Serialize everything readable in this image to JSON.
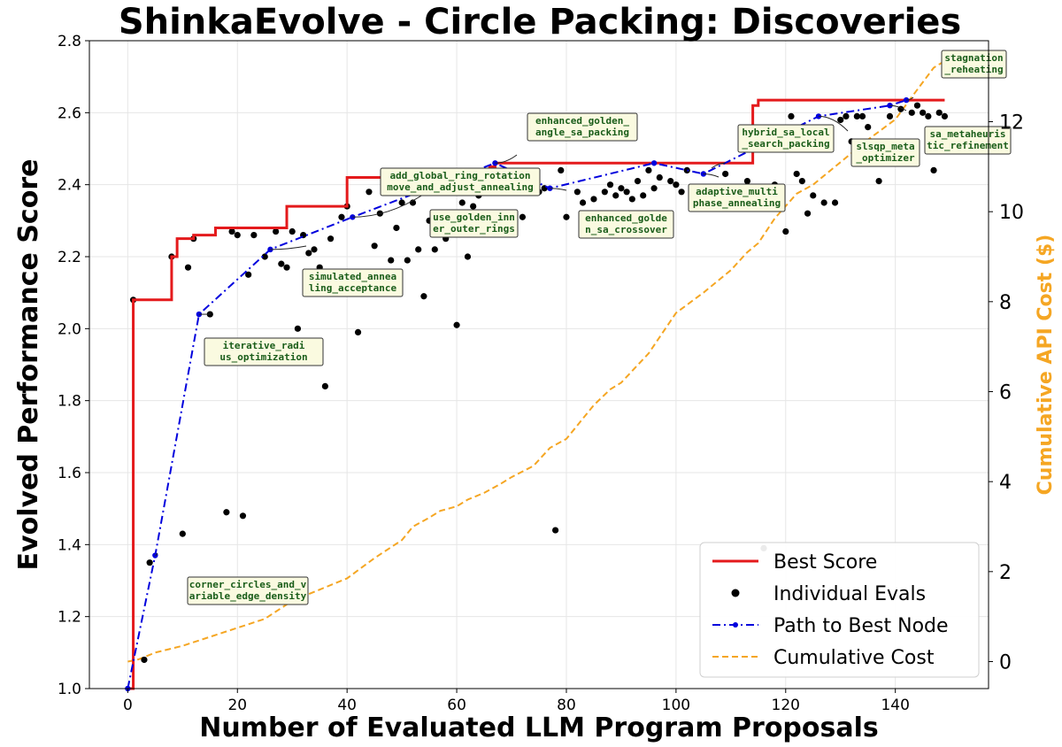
{
  "chart_data": {
    "type": "line",
    "title": "ShinkaEvolve - Circle Packing: Discoveries",
    "xlabel": "Number of Evaluated LLM Program Proposals",
    "ylabel": "Evolved Performance Score",
    "y2label": "Cumulative API Cost ($)",
    "xlim": [
      -7,
      157
    ],
    "ylim": [
      1.0,
      2.8
    ],
    "y2lim": [
      -0.6,
      13.8
    ],
    "xticks": [
      0,
      20,
      40,
      60,
      80,
      100,
      120,
      140
    ],
    "yticks": [
      1.0,
      1.2,
      1.4,
      1.6,
      1.8,
      2.0,
      2.2,
      2.4,
      2.6,
      2.8
    ],
    "y2ticks": [
      0,
      2,
      4,
      6,
      8,
      10,
      12
    ],
    "grid": true,
    "legend_position": "bottom-right",
    "colors": {
      "best": "#e41a1c",
      "evals": "#000000",
      "path": "#0000dd",
      "cost": "#f5a623",
      "y2label": "#f5a623"
    },
    "best_score": {
      "name": "Best Score",
      "x": [
        0,
        1,
        1,
        8,
        8,
        9,
        9,
        12,
        12,
        16,
        16,
        29,
        29,
        30,
        30,
        40,
        40,
        66,
        66,
        67,
        67,
        114,
        114,
        115,
        115,
        149
      ],
      "y": [
        1.0,
        1.0,
        2.08,
        2.08,
        2.2,
        2.2,
        2.25,
        2.25,
        2.26,
        2.26,
        2.28,
        2.28,
        2.34,
        2.34,
        2.34,
        2.34,
        2.42,
        2.42,
        2.45,
        2.45,
        2.46,
        2.46,
        2.62,
        2.62,
        2.635,
        2.635
      ]
    },
    "individual_evals": {
      "name": "Individual Evals",
      "x": [
        1,
        3,
        4,
        8,
        10,
        11,
        12,
        15,
        18,
        19,
        20,
        21,
        22,
        23,
        25,
        27,
        28,
        29,
        30,
        31,
        32,
        33,
        34,
        35,
        36,
        37,
        39,
        40,
        42,
        44,
        45,
        46,
        48,
        49,
        50,
        51,
        52,
        53,
        54,
        55,
        56,
        57,
        58,
        59,
        60,
        61,
        62,
        63,
        64,
        65,
        68,
        72,
        75,
        76,
        78,
        79,
        80,
        82,
        83,
        84,
        85,
        87,
        88,
        89,
        90,
        91,
        92,
        93,
        94,
        95,
        96,
        97,
        99,
        100,
        101,
        102,
        103,
        104,
        106,
        107,
        108,
        109,
        110,
        111,
        112,
        113,
        116,
        117,
        118,
        119,
        120,
        121,
        122,
        123,
        124,
        125,
        126,
        127,
        129,
        130,
        131,
        132,
        133,
        134,
        135,
        137,
        139,
        141,
        143,
        144,
        145,
        146,
        147,
        148,
        149
      ],
      "y": [
        2.08,
        1.08,
        1.35,
        2.2,
        1.43,
        2.17,
        2.25,
        2.04,
        1.49,
        2.27,
        2.26,
        1.48,
        2.15,
        2.26,
        2.2,
        2.27,
        2.18,
        2.17,
        2.27,
        2.0,
        2.26,
        2.21,
        2.22,
        2.17,
        1.84,
        2.25,
        2.31,
        2.34,
        1.99,
        2.38,
        2.23,
        2.32,
        2.19,
        2.28,
        2.35,
        2.19,
        2.35,
        2.22,
        2.09,
        2.3,
        2.22,
        2.28,
        2.25,
        2.32,
        2.01,
        2.35,
        2.2,
        2.34,
        2.37,
        2.38,
        2.32,
        2.31,
        2.38,
        2.39,
        1.44,
        2.44,
        2.31,
        2.38,
        2.35,
        2.3,
        2.36,
        2.38,
        2.4,
        2.37,
        2.39,
        2.38,
        2.36,
        2.41,
        2.37,
        2.44,
        2.39,
        2.42,
        2.41,
        2.4,
        2.38,
        2.44,
        2.39,
        2.35,
        2.36,
        2.38,
        2.34,
        2.43,
        2.39,
        2.35,
        2.37,
        2.41,
        1.39,
        2.37,
        2.4,
        2.37,
        2.27,
        2.59,
        2.43,
        2.41,
        2.32,
        2.37,
        2.55,
        2.35,
        2.35,
        2.58,
        2.59,
        2.52,
        2.59,
        2.59,
        2.56,
        2.41,
        2.59,
        2.61,
        2.6,
        2.62,
        2.6,
        2.59,
        2.44,
        2.6,
        2.59
      ]
    },
    "path_to_best": {
      "name": "Path to Best Node",
      "x": [
        0,
        5,
        13,
        26,
        41,
        67,
        77,
        96,
        105,
        126,
        139,
        142
      ],
      "y": [
        1.0,
        1.37,
        2.04,
        2.22,
        2.31,
        2.46,
        2.39,
        2.46,
        2.43,
        2.59,
        2.62,
        2.635
      ]
    },
    "cumulative_cost": {
      "name": "Cumulative Cost",
      "x": [
        0,
        2,
        5,
        10,
        15,
        20,
        25,
        30,
        35,
        40,
        45,
        50,
        52,
        55,
        57,
        60,
        62,
        65,
        68,
        70,
        74,
        77,
        80,
        85,
        88,
        90,
        95,
        100,
        105,
        110,
        113,
        115,
        118,
        122,
        125,
        128,
        132,
        135,
        140,
        143,
        147,
        149
      ],
      "y": [
        0.0,
        0.05,
        0.2,
        0.35,
        0.55,
        0.75,
        0.95,
        1.35,
        1.6,
        1.85,
        2.3,
        2.7,
        3.0,
        3.2,
        3.35,
        3.45,
        3.6,
        3.75,
        3.95,
        4.1,
        4.35,
        4.75,
        4.95,
        5.7,
        6.05,
        6.2,
        6.85,
        7.75,
        8.2,
        8.7,
        9.1,
        9.3,
        9.85,
        10.4,
        10.6,
        10.9,
        11.3,
        11.6,
        12.05,
        12.55,
        13.2,
        13.35
      ]
    },
    "annotations": [
      {
        "text": [
          "corner_circles_and_v",
          "ariable_edge_density"
        ],
        "x": 5,
        "y": 1.37
      },
      {
        "text": [
          "iterative_radi",
          "us_optimization"
        ],
        "x": 13,
        "y": 2.04
      },
      {
        "text": [
          "simulated_annea",
          "ling_acceptance"
        ],
        "x": 26,
        "y": 2.22
      },
      {
        "text": [
          "add_global_ring_rotation",
          "move_and_adjust_annealing"
        ],
        "x": 41,
        "y": 2.31
      },
      {
        "text": [
          "use_golden_inn",
          "er_outer_rings"
        ],
        "x": 56,
        "y": 2.27
      },
      {
        "text": [
          "enhanced_golden_",
          "angle_sa_packing"
        ],
        "x": 67,
        "y": 2.46
      },
      {
        "text": [
          "enhanced_golde",
          "n_sa_crossover"
        ],
        "x": 77,
        "y": 2.39
      },
      {
        "text": [
          "adaptive_multi",
          "phase_annealing"
        ],
        "x": 105,
        "y": 2.43
      },
      {
        "text": [
          "hybrid_sa_local",
          "_search_packing"
        ],
        "x": 109,
        "y": 2.46
      },
      {
        "text": [
          "slsqp_meta",
          "_optimizer"
        ],
        "x": 126,
        "y": 2.59
      },
      {
        "text": [
          "stagnation",
          "_reheating"
        ],
        "x": 142,
        "y": 2.635
      },
      {
        "text": [
          "sa_metaheuris",
          "tic_refinement"
        ],
        "x": 139,
        "y": 2.62
      }
    ],
    "legend": [
      "Best Score",
      "Individual Evals",
      "Path to Best Node",
      "Cumulative Cost"
    ]
  }
}
